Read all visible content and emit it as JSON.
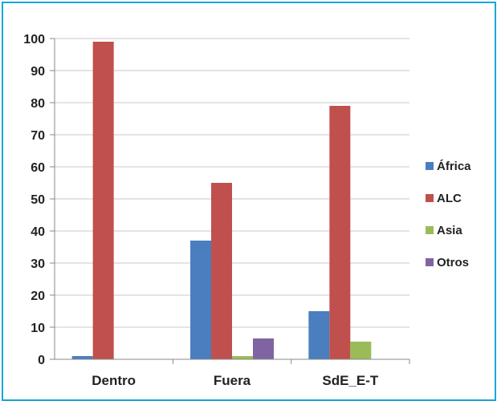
{
  "chart_data": {
    "type": "bar",
    "categories": [
      "Dentro",
      "Fuera",
      "SdE_E-T"
    ],
    "series": [
      {
        "name": "África",
        "color": "#4a7ebf",
        "values": [
          1,
          37,
          15
        ]
      },
      {
        "name": "ALC",
        "color": "#c0504d",
        "values": [
          99,
          55,
          79
        ]
      },
      {
        "name": "Asia",
        "color": "#9bbb59",
        "values": [
          0,
          1,
          5.5
        ]
      },
      {
        "name": "Otros",
        "color": "#8064a2",
        "values": [
          0,
          6.5,
          0
        ]
      }
    ],
    "yticks": [
      "0",
      "10",
      "20",
      "30",
      "40",
      "50",
      "60",
      "70",
      "80",
      "90",
      "100"
    ],
    "ylim": [
      0,
      100
    ],
    "grid": true,
    "legend_position": "right"
  }
}
